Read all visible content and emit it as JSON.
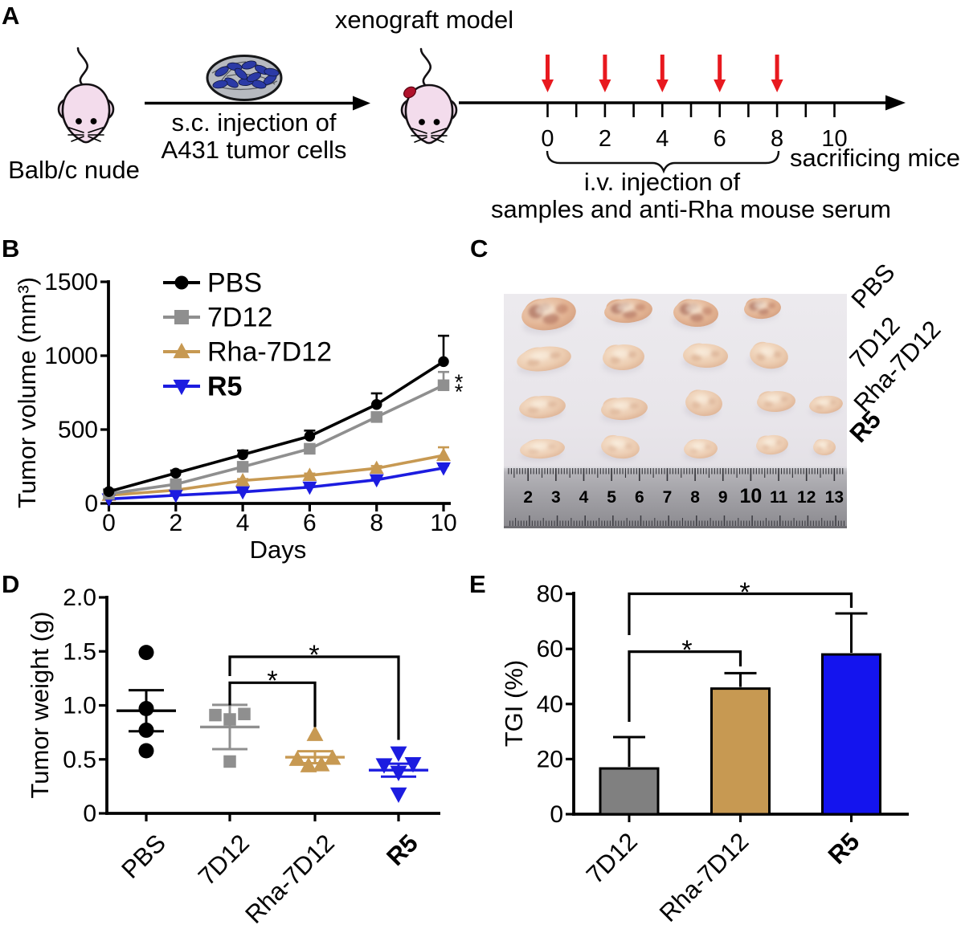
{
  "figure_caption": "",
  "panels": {
    "a": {
      "letter": "A",
      "mouse1_label": "Balb/c nude",
      "arrow_label_line1": "s.c. injection of",
      "arrow_label_line2": "A431 tumor cells",
      "mouse2_label": "xenograft model",
      "timeline": {
        "days": [
          0,
          1,
          2,
          3,
          4,
          5,
          6,
          7,
          8,
          9,
          10
        ],
        "labeled_days": [
          0,
          2,
          4,
          6,
          8,
          10
        ],
        "injection_days": [
          0,
          2,
          4,
          6,
          8
        ],
        "brace_label_line1": "i.v. injection of",
        "brace_label_line2": "samples and anti-Rha mouse serum",
        "end_label": "sacrificing mice"
      },
      "colors": {
        "mouse_body": "#f3dcec",
        "injection_arrow": "#e8191f",
        "tumor_spot": "#b0122c",
        "cell_dish": "#b7bac0",
        "cell": "#2b3aa6"
      }
    },
    "b": {
      "letter": "B"
    },
    "c": {
      "letter": "C",
      "row_labels": [
        {
          "text": "PBS",
          "bold": false
        },
        {
          "text": "7D12",
          "bold": false
        },
        {
          "text": "Rha-7D12",
          "bold": false
        },
        {
          "text": "R5",
          "bold": true
        }
      ],
      "ruler_numbers": [
        "2",
        "3",
        "4",
        "5",
        "6",
        "7",
        "8",
        "9",
        "10",
        "11",
        "12",
        "13"
      ],
      "tumor_rows": [
        {
          "group": "PBS",
          "mottle": 0.85,
          "base": "#d89f82",
          "tumors": [
            [
              683,
              391,
              34,
              20,
              -8
            ],
            [
              782,
              387,
              30,
              15,
              -5
            ],
            [
              866,
              390,
              28,
              17,
              3
            ],
            [
              949,
              384,
              23,
              13,
              -4
            ]
          ]
        },
        {
          "group": "7D12",
          "mottle": 0.35,
          "base": "#e5bfa4",
          "tumors": [
            [
              677,
              447,
              34,
              15,
              -7
            ],
            [
              776,
              445,
              26,
              16,
              -3
            ],
            [
              878,
              443,
              28,
              15,
              2
            ],
            [
              957,
              443,
              24,
              16,
              8
            ]
          ]
        },
        {
          "group": "Rha-7D12",
          "mottle": 0.3,
          "base": "#e3bda6",
          "tumors": [
            [
              675,
              507,
              29,
              14,
              -5
            ],
            [
              777,
              509,
              29,
              14,
              -4
            ],
            [
              876,
              502,
              23,
              16,
              5
            ],
            [
              966,
              500,
              24,
              13,
              -3
            ],
            [
              1028,
              504,
              21,
              11,
              -6
            ]
          ]
        },
        {
          "group": "R5",
          "mottle": 0.25,
          "base": "#e6c3ab",
          "tumors": [
            [
              675,
              559,
              28,
              12,
              -4
            ],
            [
              772,
              557,
              24,
              14,
              6
            ],
            [
              872,
              559,
              21,
              12,
              -2
            ],
            [
              961,
              554,
              20,
              12,
              -5
            ],
            [
              1026,
              557,
              14,
              10,
              0
            ]
          ]
        }
      ]
    },
    "d": {
      "letter": "D"
    },
    "e": {
      "letter": "E"
    }
  },
  "chart_data": [
    {
      "panel": "B",
      "type": "line",
      "title": "",
      "xlabel": "Days",
      "ylabel": "Tumor volume (mm³)",
      "xlim": [
        0,
        10
      ],
      "ylim": [
        0,
        1500
      ],
      "xticks": [
        0,
        2,
        4,
        6,
        8,
        10
      ],
      "yticks": [
        0,
        500,
        1000,
        1500
      ],
      "grid": false,
      "legend_position": "top-left",
      "x": [
        0,
        2,
        4,
        6,
        8,
        10
      ],
      "series": [
        {
          "name": "PBS",
          "color": "#000000",
          "marker": "circle",
          "bold": false,
          "values": [
            80,
            205,
            330,
            455,
            670,
            960
          ],
          "err": [
            12,
            18,
            28,
            38,
            75,
            175
          ]
        },
        {
          "name": "7D12",
          "color": "#8f8f8f",
          "marker": "square",
          "bold": false,
          "values": [
            65,
            130,
            248,
            370,
            585,
            800
          ],
          "err": [
            8,
            10,
            15,
            20,
            28,
            90
          ]
        },
        {
          "name": "Rha-7D12",
          "color": "#c79952",
          "marker": "triangle-up",
          "bold": false,
          "values": [
            55,
            90,
            155,
            190,
            238,
            325
          ],
          "err": [
            6,
            8,
            10,
            12,
            15,
            55
          ]
        },
        {
          "name": "R5",
          "color": "#1c1ce0",
          "marker": "triangle-down",
          "bold": true,
          "values": [
            30,
            55,
            78,
            110,
            160,
            240
          ],
          "err": [
            5,
            6,
            8,
            10,
            12,
            18
          ]
        }
      ],
      "annotation": {
        "text": "**",
        "at_series": "7D12",
        "at_x": 10
      }
    },
    {
      "panel": "D",
      "type": "scatter",
      "title": "",
      "xlabel": "",
      "ylabel": "Tumor weight (g)",
      "ylim": [
        0,
        2.0
      ],
      "yticks": [
        0,
        0.5,
        1.0,
        1.5,
        2.0
      ],
      "ytick_labels": [
        "0",
        "0.5",
        "1.0",
        "1.5",
        "2.0"
      ],
      "categories": [
        "PBS",
        "7D12",
        "Rha-7D12",
        "R5"
      ],
      "groups": [
        {
          "name": "PBS",
          "color": "#000000",
          "marker": "circle",
          "bold": false,
          "points": [
            1.49,
            0.97,
            0.77,
            0.58
          ],
          "jitter": [
            0,
            0,
            0,
            0
          ],
          "mean": 0.95,
          "sem": 0.19
        },
        {
          "name": "7D12",
          "color": "#8f8f8f",
          "marker": "square",
          "bold": false,
          "points": [
            0.91,
            0.87,
            0.92,
            0.48
          ],
          "jitter": [
            -18,
            0,
            18,
            0
          ],
          "mean": 0.8,
          "sem": 0.205
        },
        {
          "name": "Rha-7D12",
          "color": "#c79952",
          "marker": "triangle-up",
          "bold": false,
          "points": [
            0.73,
            0.5,
            0.44,
            0.45,
            0.51
          ],
          "jitter": [
            0,
            -22,
            -8,
            8,
            22
          ],
          "mean": 0.52,
          "sem": 0.055
        },
        {
          "name": "R5",
          "color": "#1c1ce0",
          "marker": "triangle-down",
          "bold": true,
          "points": [
            0.56,
            0.45,
            0.46,
            0.38,
            0.18
          ],
          "jitter": [
            0,
            -18,
            18,
            0,
            0
          ],
          "mean": 0.4,
          "sem": 0.06
        }
      ],
      "comparisons": [
        {
          "from": "7D12",
          "to": "Rha-7D12",
          "label": "*"
        },
        {
          "from": "7D12",
          "to": "R5",
          "label": "*"
        }
      ]
    },
    {
      "panel": "E",
      "type": "bar",
      "title": "",
      "xlabel": "",
      "ylabel": "TGI (%)",
      "ylim": [
        0,
        80
      ],
      "yticks": [
        0,
        20,
        40,
        60,
        80
      ],
      "categories": [
        "7D12",
        "Rha-7D12",
        "R5"
      ],
      "values": [
        16.6,
        45.6,
        58
      ],
      "errors": [
        11.4,
        5.6,
        14.9
      ],
      "colors": [
        "#808080",
        "#c79952",
        "#1414ee"
      ],
      "bold": [
        false,
        false,
        true
      ],
      "comparisons": [
        {
          "from": "7D12",
          "to": "Rha-7D12",
          "label": "*"
        },
        {
          "from": "7D12",
          "to": "R5",
          "label": "*"
        }
      ]
    }
  ]
}
